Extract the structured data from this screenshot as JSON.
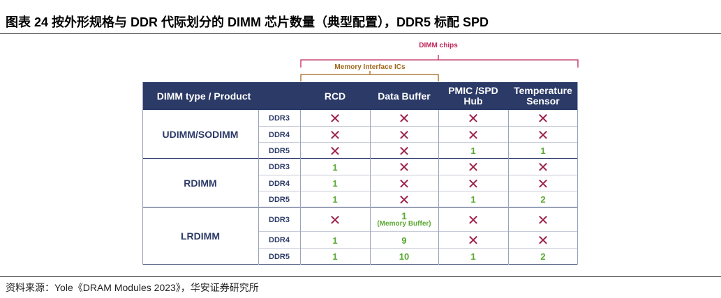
{
  "header": {
    "title": "图表 24 按外形规格与 DDR 代际划分的 DIMM 芯片数量（典型配置），DDR5 标配 SPD"
  },
  "brackets": {
    "dimm_chips": "DIMM chips",
    "interface": "Memory Interface ICs"
  },
  "table": {
    "columns": [
      "DIMM type / Product",
      "RCD",
      "Data Buffer",
      "PMIC /SPD Hub",
      "Temperature Sensor"
    ],
    "groups": [
      {
        "name": "UDIMM/SODIMM",
        "rows": [
          {
            "gen": "DDR3",
            "cells": [
              "✕",
              "✕",
              "✕",
              "✕"
            ]
          },
          {
            "gen": "DDR4",
            "cells": [
              "✕",
              "✕",
              "✕",
              "✕"
            ]
          },
          {
            "gen": "DDR5",
            "cells": [
              "✕",
              "✕",
              "1",
              "1"
            ]
          }
        ]
      },
      {
        "name": "RDIMM",
        "rows": [
          {
            "gen": "DDR3",
            "cells": [
              "1",
              "✕",
              "✕",
              "✕"
            ]
          },
          {
            "gen": "DDR4",
            "cells": [
              "1",
              "✕",
              "✕",
              "✕"
            ]
          },
          {
            "gen": "DDR5",
            "cells": [
              "1",
              "✕",
              "1",
              "2"
            ]
          }
        ]
      },
      {
        "name": "LRDIMM",
        "rows": [
          {
            "gen": "DDR3",
            "cells": [
              "✕",
              {
                "text": "1",
                "note": "(Memory Buffer)"
              },
              "✕",
              "✕"
            ]
          },
          {
            "gen": "DDR4",
            "cells": [
              "1",
              "9",
              "✕",
              "✕"
            ]
          },
          {
            "gen": "DDR5",
            "cells": [
              "1",
              "10",
              "1",
              "2"
            ]
          }
        ]
      }
    ]
  },
  "source": "资料来源：Yole《DRAM Modules 2023》，华安证券研究所"
}
